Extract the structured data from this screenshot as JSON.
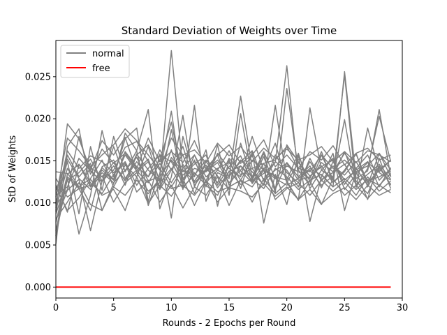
{
  "chart_data": {
    "type": "line",
    "title": "Standard Deviation of Weights over Time",
    "xlabel": "Rounds - 2 Epochs per Round",
    "ylabel": "StD of Weights",
    "xlim": [
      0,
      30
    ],
    "ylim": [
      -0.0013,
      0.0293
    ],
    "xticks": [
      0,
      5,
      10,
      15,
      20,
      25,
      30
    ],
    "yticks": [
      0.0,
      0.005,
      0.01,
      0.015,
      0.02,
      0.025
    ],
    "xtick_labels": [
      "0",
      "5",
      "10",
      "15",
      "20",
      "25",
      "30"
    ],
    "ytick_labels": [
      "0.000",
      "0.005",
      "0.010",
      "0.015",
      "0.020",
      "0.025"
    ],
    "grid": false,
    "legend": {
      "position": "top-left",
      "entries": [
        {
          "label": "normal",
          "color": "#808080"
        },
        {
          "label": "free",
          "color": "#ff0000"
        }
      ]
    },
    "x": [
      0,
      1,
      2,
      3,
      4,
      5,
      6,
      7,
      8,
      9,
      10,
      11,
      12,
      13,
      14,
      15,
      16,
      17,
      18,
      19,
      20,
      21,
      22,
      23,
      24,
      25,
      26,
      27,
      28,
      29
    ],
    "series": [
      {
        "group": "normal",
        "color": "#808080",
        "values": [
          0.0137,
          0.0135,
          0.0118,
          0.0142,
          0.0131,
          0.0148,
          0.0126,
          0.0158,
          0.0139,
          0.0127,
          0.0281,
          0.0139,
          0.0126,
          0.0145,
          0.0118,
          0.0137,
          0.0144,
          0.0126,
          0.0135,
          0.0148,
          0.0263,
          0.0129,
          0.0141,
          0.0133,
          0.0119,
          0.0256,
          0.0129,
          0.0138,
          0.0211,
          0.0131
        ]
      },
      {
        "group": "normal",
        "color": "#808080",
        "values": [
          0.0051,
          0.0167,
          0.0188,
          0.0119,
          0.0142,
          0.0128,
          0.0183,
          0.0162,
          0.0097,
          0.0135,
          0.0209,
          0.0116,
          0.0216,
          0.0102,
          0.0136,
          0.0129,
          0.0227,
          0.0141,
          0.0121,
          0.0216,
          0.0126,
          0.0103,
          0.0213,
          0.0139,
          0.0129,
          0.0252,
          0.0118,
          0.0189,
          0.0137,
          0.0151
        ]
      },
      {
        "group": "normal",
        "color": "#808080",
        "values": [
          0.0091,
          0.0194,
          0.0176,
          0.0139,
          0.0174,
          0.0157,
          0.0178,
          0.0137,
          0.0149,
          0.0119,
          0.0187,
          0.0124,
          0.0151,
          0.0119,
          0.0169,
          0.0109,
          0.0206,
          0.0129,
          0.0159,
          0.0112,
          0.0236,
          0.0139,
          0.0121,
          0.0157,
          0.0128,
          0.0199,
          0.0119,
          0.0141,
          0.0203,
          0.0149
        ]
      },
      {
        "group": "normal",
        "color": "#808080",
        "values": [
          0.0061,
          0.0129,
          0.0063,
          0.0109,
          0.0186,
          0.0131,
          0.0176,
          0.0189,
          0.0101,
          0.0158,
          0.0082,
          0.0179,
          0.0131,
          0.0163,
          0.0096,
          0.0151,
          0.0117,
          0.0161,
          0.0076,
          0.0134,
          0.0098,
          0.0157,
          0.0078,
          0.0131,
          0.0159,
          0.0091,
          0.0137,
          0.0104,
          0.0153,
          0.0117
        ]
      },
      {
        "group": "normal",
        "color": "#808080",
        "values": [
          0.0101,
          0.0149,
          0.0087,
          0.0167,
          0.0115,
          0.0179,
          0.0137,
          0.0162,
          0.0211,
          0.0093,
          0.0131,
          0.0204,
          0.0119,
          0.0149,
          0.0132,
          0.0116,
          0.0171,
          0.0127,
          0.0155,
          0.0117,
          0.0169,
          0.0149,
          0.0126,
          0.0148,
          0.0137,
          0.0159,
          0.0141,
          0.0121,
          0.0159,
          0.0131
        ]
      },
      {
        "group": "normal",
        "color": "#808080",
        "values": [
          0.0079,
          0.0115,
          0.0128,
          0.0067,
          0.0126,
          0.0139,
          0.0166,
          0.0173,
          0.0149,
          0.0117,
          0.0154,
          0.0137,
          0.0149,
          0.0126,
          0.0159,
          0.0141,
          0.0131,
          0.0179,
          0.0139,
          0.0129,
          0.0121,
          0.0129,
          0.0139,
          0.0121,
          0.0132,
          0.0161,
          0.0126,
          0.0111,
          0.0142,
          0.0122
        ]
      },
      {
        "group": "normal",
        "color": "#808080",
        "values": [
          0.0089,
          0.0157,
          0.0131,
          0.0147,
          0.0091,
          0.0123,
          0.0161,
          0.0143,
          0.0131,
          0.0151,
          0.0196,
          0.0129,
          0.0141,
          0.0137,
          0.0148,
          0.0124,
          0.0139,
          0.0156,
          0.0127,
          0.0149,
          0.0139,
          0.0119,
          0.0153,
          0.0126,
          0.0144,
          0.0133,
          0.0149,
          0.0126,
          0.0131,
          0.0138
        ]
      },
      {
        "group": "normal",
        "color": "#808080",
        "values": [
          0.0121,
          0.0089,
          0.0146,
          0.0119,
          0.0139,
          0.0127,
          0.0157,
          0.0138,
          0.0124,
          0.0147,
          0.0124,
          0.0146,
          0.0111,
          0.0142,
          0.0124,
          0.0153,
          0.0138,
          0.0124,
          0.0147,
          0.0116,
          0.0148,
          0.0131,
          0.0144,
          0.0118,
          0.0149,
          0.0127,
          0.0139,
          0.0149,
          0.0119,
          0.0142
        ]
      },
      {
        "group": "normal",
        "color": "#808080",
        "values": [
          0.0094,
          0.0141,
          0.0119,
          0.0129,
          0.0151,
          0.0119,
          0.0145,
          0.0131,
          0.0167,
          0.0125,
          0.0163,
          0.0119,
          0.0133,
          0.0151,
          0.0139,
          0.0131,
          0.0151,
          0.0137,
          0.0121,
          0.0157,
          0.0136,
          0.0124,
          0.0149,
          0.0128,
          0.0136,
          0.0146,
          0.0122,
          0.0134,
          0.0146,
          0.0128
        ]
      },
      {
        "group": "normal",
        "color": "#808080",
        "values": [
          0.0109,
          0.0119,
          0.0153,
          0.0138,
          0.0125,
          0.0167,
          0.0129,
          0.0149,
          0.0131,
          0.0163,
          0.0139,
          0.0157,
          0.0121,
          0.0139,
          0.0157,
          0.0121,
          0.0144,
          0.0131,
          0.0161,
          0.0129,
          0.0144,
          0.0137,
          0.0129,
          0.0161,
          0.0124,
          0.0139,
          0.0158,
          0.0124,
          0.0139,
          0.0151
        ]
      },
      {
        "group": "normal",
        "color": "#808080",
        "values": [
          0.0081,
          0.0101,
          0.0124,
          0.0098,
          0.0091,
          0.0119,
          0.0109,
          0.0127,
          0.0111,
          0.0129,
          0.0117,
          0.0121,
          0.0109,
          0.0126,
          0.0101,
          0.0118,
          0.0114,
          0.0107,
          0.0123,
          0.0108,
          0.0119,
          0.0104,
          0.0126,
          0.0099,
          0.0111,
          0.0118,
          0.0104,
          0.0121,
          0.0109,
          0.0116
        ]
      },
      {
        "group": "normal",
        "color": "#808080",
        "values": [
          0.0099,
          0.0162,
          0.0141,
          0.0156,
          0.0149,
          0.0136,
          0.0149,
          0.0121,
          0.0141,
          0.0157,
          0.0149,
          0.0123,
          0.0157,
          0.0131,
          0.0141,
          0.0148,
          0.0127,
          0.0151,
          0.0139,
          0.0171,
          0.0124,
          0.0148,
          0.0132,
          0.0143,
          0.0151,
          0.0122,
          0.0141,
          0.0157,
          0.0127,
          0.0141
        ]
      },
      {
        "group": "normal",
        "color": "#808080",
        "values": [
          0.0119,
          0.0091,
          0.0106,
          0.0128,
          0.0109,
          0.0116,
          0.0091,
          0.0131,
          0.0099,
          0.0121,
          0.0108,
          0.0129,
          0.0097,
          0.0126,
          0.0113,
          0.0119,
          0.0127,
          0.0101,
          0.0129,
          0.0111,
          0.0124,
          0.0104,
          0.0116,
          0.0098,
          0.0129,
          0.0109,
          0.0121,
          0.0105,
          0.0121,
          0.0112
        ]
      },
      {
        "group": "normal",
        "color": "#808080",
        "values": [
          0.0067,
          0.0131,
          0.0117,
          0.0091,
          0.0143,
          0.0151,
          0.0121,
          0.0157,
          0.0169,
          0.0141,
          0.0119,
          0.0141,
          0.0157,
          0.0124,
          0.0139,
          0.0162,
          0.0133,
          0.0141,
          0.0147,
          0.0151,
          0.0167,
          0.0141,
          0.0137,
          0.0157,
          0.0141,
          0.0151,
          0.0137,
          0.0144,
          0.0159,
          0.0139
        ]
      },
      {
        "group": "normal",
        "color": "#808080",
        "values": [
          0.0107,
          0.0177,
          0.0162,
          0.0143,
          0.0157,
          0.0169,
          0.0188,
          0.0174,
          0.0157,
          0.0139,
          0.0177,
          0.0157,
          0.0163,
          0.0148,
          0.0171,
          0.0156,
          0.0167,
          0.0149,
          0.0165,
          0.0153,
          0.0164,
          0.0151,
          0.0157,
          0.0167,
          0.0149,
          0.0161,
          0.0148,
          0.0162,
          0.0157,
          0.0149
        ]
      },
      {
        "group": "normal",
        "color": "#808080",
        "values": [
          0.0077,
          0.0134,
          0.0146,
          0.0124,
          0.0111,
          0.0134,
          0.0147,
          0.0113,
          0.0127,
          0.0101,
          0.0121,
          0.0094,
          0.0119,
          0.0109,
          0.0131,
          0.0097,
          0.0127,
          0.0119,
          0.0139,
          0.0104,
          0.0117,
          0.0124,
          0.0109,
          0.0127,
          0.0114,
          0.0126,
          0.0109,
          0.0131,
          0.0114,
          0.0126
        ]
      },
      {
        "group": "normal",
        "color": "#808080",
        "values": [
          0.0115,
          0.0152,
          0.0129,
          0.0116,
          0.0136,
          0.0124,
          0.0139,
          0.0154,
          0.0126,
          0.0131,
          0.0151,
          0.0133,
          0.0146,
          0.0157,
          0.0121,
          0.0143,
          0.0156,
          0.0123,
          0.0141,
          0.0131,
          0.0127,
          0.0159,
          0.0117,
          0.0139,
          0.0153,
          0.0116,
          0.0134,
          0.0148,
          0.0136,
          0.0127
        ]
      },
      {
        "group": "normal",
        "color": "#808080",
        "values": [
          0.0087,
          0.0127,
          0.0136,
          0.0152,
          0.0126,
          0.0144,
          0.0127,
          0.0139,
          0.0152,
          0.0116,
          0.0139,
          0.0167,
          0.0124,
          0.0138,
          0.0151,
          0.0132,
          0.0149,
          0.0162,
          0.0126,
          0.0139,
          0.0147,
          0.0127,
          0.0131,
          0.0144,
          0.0124,
          0.0137,
          0.0159,
          0.0119,
          0.0144,
          0.0121
        ]
      },
      {
        "group": "normal",
        "color": "#808080",
        "values": [
          0.0129,
          0.0107,
          0.0117,
          0.0121,
          0.0132,
          0.0101,
          0.0124,
          0.0136,
          0.0114,
          0.0124,
          0.0141,
          0.0117,
          0.0136,
          0.0121,
          0.0109,
          0.0138,
          0.0122,
          0.0129,
          0.0117,
          0.0141,
          0.0131,
          0.0116,
          0.0127,
          0.0134,
          0.0119,
          0.0129,
          0.0116,
          0.0128,
          0.0121,
          0.0135
        ]
      },
      {
        "group": "normal",
        "color": "#808080",
        "values": [
          0.0097,
          0.0116,
          0.0179,
          0.0134,
          0.0164,
          0.0147,
          0.0159,
          0.0141,
          0.0177,
          0.0149,
          0.0161,
          0.0148,
          0.0174,
          0.0141,
          0.0157,
          0.0169,
          0.0147,
          0.0157,
          0.0175,
          0.0143,
          0.0157,
          0.0141,
          0.0161,
          0.0151,
          0.0168,
          0.0145,
          0.0159,
          0.0165,
          0.0151,
          0.0157
        ]
      },
      {
        "group": "free",
        "color": "#ff0000",
        "values": [
          0,
          0,
          0,
          0,
          0,
          0,
          0,
          0,
          0,
          0,
          0,
          0,
          0,
          0,
          0,
          0,
          0,
          0,
          0,
          0,
          0,
          0,
          0,
          0,
          0,
          0,
          0,
          0,
          0,
          0
        ]
      }
    ]
  }
}
